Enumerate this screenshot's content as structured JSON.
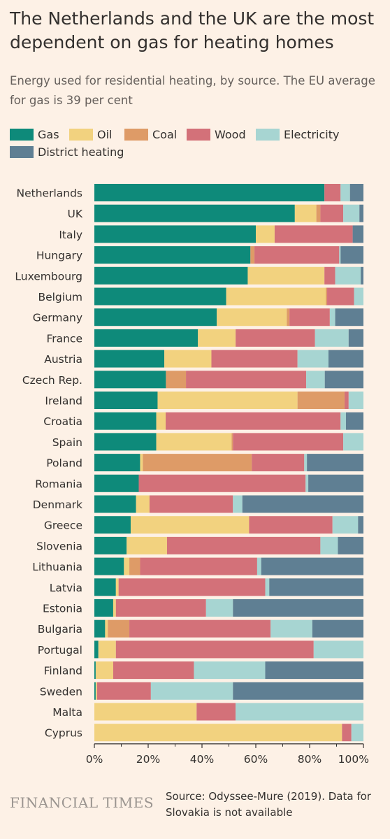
{
  "title": "The Netherlands and the UK are the most dependent on gas for heating homes",
  "subtitle": "Energy used for residential heating, by source. The EU average for gas is 39 per cent",
  "colors": {
    "Gas": "#0e8a7a",
    "Oil": "#f2d27f",
    "Coal": "#de9b67",
    "Wood": "#d37179",
    "Electricity": "#a7d5d2",
    "District heating": "#5f7f93",
    "axis": "#33302e"
  },
  "footer": {
    "brand": "FINANCIAL TIMES",
    "source": "Source: Odyssee-Mure (2019). Data for Slovakia is not available"
  },
  "chart_data": {
    "type": "bar",
    "orientation": "horizontal",
    "stacked": true,
    "title": "The Netherlands and the UK are the most dependent on gas for heating homes",
    "subtitle": "Energy used for residential heating, by source. The EU average for gas is 39 per cent",
    "xlim": [
      0,
      100
    ],
    "x_ticks": [
      "0%",
      "20%",
      "40%",
      "60%",
      "80%",
      "100%"
    ],
    "legend_position": "top",
    "categories": [
      "Netherlands",
      "UK",
      "Italy",
      "Hungary",
      "Luxembourg",
      "Belgium",
      "Germany",
      "France",
      "Austria",
      "Czech Rep.",
      "Ireland",
      "Croatia",
      "Spain",
      "Poland",
      "Romania",
      "Denmark",
      "Greece",
      "Slovenia",
      "Lithuania",
      "Latvia",
      "Estonia",
      "Bulgaria",
      "Portugal",
      "Finland",
      "Sweden",
      "Malta",
      "Cyprus"
    ],
    "series": [
      {
        "name": "Gas",
        "values": [
          85.5,
          74.5,
          60,
          58,
          57,
          49,
          45.5,
          38.5,
          26,
          25,
          23.5,
          23,
          23,
          17,
          16.5,
          15.5,
          13.5,
          12,
          11,
          8,
          7,
          4,
          1.5,
          0.5,
          0.5,
          0,
          0
        ]
      },
      {
        "name": "Oil",
        "values": [
          0,
          8,
          7,
          0,
          28.5,
          37,
          26,
          14,
          17.5,
          0,
          52,
          3.5,
          28,
          1,
          0,
          5,
          44,
          15,
          2,
          1,
          1,
          1,
          6.5,
          6.5,
          0.5,
          38,
          92.5
        ]
      },
      {
        "name": "Coal",
        "values": [
          0,
          1.5,
          0,
          1.5,
          0,
          0.5,
          1,
          0,
          0,
          7,
          17.5,
          0,
          0.5,
          40.5,
          0,
          0,
          0,
          0,
          4,
          0,
          0,
          8,
          0,
          0,
          0,
          0,
          0
        ]
      },
      {
        "name": "Wood",
        "values": [
          6,
          8.5,
          29,
          31.5,
          4,
          10,
          15,
          29.5,
          32,
          42,
          1.5,
          65,
          41,
          19.5,
          62,
          31,
          31,
          57,
          43.5,
          54.5,
          33.5,
          52.5,
          73.5,
          30,
          20,
          14.5,
          3.5
        ]
      },
      {
        "name": "Electricity",
        "values": [
          3.5,
          6,
          0,
          0.5,
          9.5,
          3.5,
          2,
          12.5,
          11.5,
          6.5,
          5.5,
          2,
          7.5,
          1,
          1,
          3.5,
          9.5,
          6.5,
          1.5,
          1.5,
          10,
          15.5,
          18.5,
          26.5,
          30.5,
          47.5,
          4.5
        ]
      },
      {
        "name": "District heating",
        "values": [
          5,
          1.5,
          4,
          8.5,
          1,
          0,
          10.5,
          5.5,
          13,
          13.5,
          0,
          6.5,
          0,
          21,
          20.5,
          45,
          2,
          9.5,
          38,
          35,
          48.5,
          19,
          0,
          36.5,
          48.5,
          0,
          0
        ]
      }
    ]
  }
}
